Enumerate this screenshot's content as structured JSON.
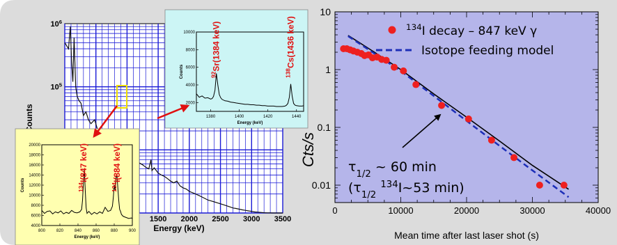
{
  "colors": {
    "panel_bg": "#dcdcdc",
    "right_plot_bg": "#b5b5ea",
    "left_grid": "#1a1ad6",
    "spectrum_line": "#111111",
    "cyan_inset_bg": "#ccf5f5",
    "yellow_inset_bg": "#ffffb0",
    "label_red": "#e01010",
    "decay_points": "#ee2020",
    "model_line": "#1d2fb8",
    "fit_line": "#000000"
  },
  "chart_data": [
    {
      "type": "line",
      "id": "gamma-spectrum",
      "xlabel": "Energy (keV)",
      "ylabel": "Counts",
      "log_y": true,
      "grid": true,
      "ylim": [
        1000,
        1000000
      ],
      "xlim": [
        0,
        3500
      ],
      "x_ticks": [
        1500,
        2000,
        2500,
        3000,
        3500
      ],
      "y_ticks": [
        {
          "value": 1000000,
          "base": "10",
          "exp": "6"
        },
        {
          "value": 100000,
          "base": "10",
          "exp": "5"
        },
        {
          "value": 10000,
          "base": "10",
          "exp": "4"
        }
      ],
      "series": [
        {
          "x": [
            0,
            60,
            90,
            110,
            130,
            150,
            175,
            200,
            230,
            260,
            300,
            340,
            380,
            420,
            480,
            520,
            560,
            600,
            640,
            680,
            720,
            760,
            800,
            847,
            884,
            950,
            1000,
            1050,
            1100,
            1150,
            1200,
            1250,
            1300,
            1350,
            1384,
            1400,
            1436,
            1500,
            1550,
            1600,
            1650,
            1700,
            1750,
            1800,
            1850,
            1900,
            1950,
            2000,
            2050,
            2100,
            2150,
            2200,
            2250,
            2300,
            2350,
            2400,
            2450,
            2500,
            2550,
            2600,
            2650,
            2700,
            2750,
            2800,
            2850,
            2900,
            2950,
            3000,
            3050,
            3100,
            3150,
            3200,
            3250,
            3300,
            3350,
            3400,
            3450,
            3500
          ],
          "values": [
            500000,
            400000,
            900000,
            250000,
            120000,
            600000,
            100000,
            70000,
            60000,
            55000,
            35000,
            40000,
            30000,
            26000,
            30000,
            22000,
            19000,
            18000,
            16000,
            14000,
            13000,
            12000,
            11000,
            20000,
            16000,
            9500,
            8500,
            8000,
            7500,
            6800,
            6200,
            5800,
            5300,
            5000,
            7000,
            4700,
            5200,
            4300,
            4000,
            3800,
            3500,
            3200,
            3000,
            3200,
            2700,
            2500,
            2400,
            2200,
            2100,
            2000,
            1900,
            1800,
            1700,
            1600,
            1550,
            1500,
            1450,
            1400,
            1350,
            1300,
            1250,
            1200,
            1180,
            1150,
            1120,
            1100,
            1080,
            1060,
            1040,
            1030,
            1020,
            1010,
            1005,
            1002,
            1001,
            1000,
            1000,
            1000
          ]
        }
      ]
    },
    {
      "type": "line",
      "id": "inset-sr-cs",
      "xlabel": "Energy (keV)",
      "ylabel": "Counts",
      "xlim": [
        1370,
        1445
      ],
      "ylim": [
        1000,
        10000
      ],
      "x_ticks": [
        1380,
        1400,
        1420,
        1440
      ],
      "y_ticks": [
        2000,
        4000,
        6000,
        8000,
        10000
      ],
      "annotations": [
        {
          "pre": "92",
          "text": "Sr(1384 keV)",
          "x": 1384
        },
        {
          "pre": "138",
          "text": "Cs(1436 keV)",
          "x": 1436
        }
      ],
      "series": [
        {
          "x": [
            1370,
            1372,
            1374,
            1376,
            1378,
            1380,
            1381,
            1382,
            1383,
            1384,
            1385,
            1386,
            1387,
            1388,
            1390,
            1392,
            1394,
            1396,
            1398,
            1400,
            1402,
            1404,
            1406,
            1408,
            1410,
            1412,
            1414,
            1416,
            1418,
            1420,
            1422,
            1424,
            1426,
            1428,
            1430,
            1432,
            1433,
            1434,
            1435,
            1436,
            1437,
            1438,
            1439,
            1440,
            1442,
            1444,
            1445
          ],
          "values": [
            3000,
            2600,
            2750,
            2500,
            2550,
            2400,
            2450,
            2700,
            3400,
            5300,
            4000,
            2900,
            2550,
            2350,
            2200,
            2150,
            2050,
            2000,
            1950,
            1900,
            1850,
            1800,
            1800,
            1750,
            1750,
            1700,
            1700,
            1650,
            1650,
            1600,
            1600,
            1600,
            1550,
            1550,
            1550,
            1600,
            1700,
            1900,
            2600,
            4100,
            2700,
            1900,
            1700,
            1650,
            1600,
            1600,
            1650
          ]
        }
      ]
    },
    {
      "type": "line",
      "id": "inset-i134",
      "xlabel": "Energy (keV)",
      "ylabel": "Counts",
      "xlim": [
        800,
        900
      ],
      "ylim": [
        4000,
        20000
      ],
      "x_ticks": [
        800,
        820,
        840,
        860,
        880,
        900
      ],
      "y_ticks": [
        4000,
        6000,
        8000,
        10000,
        12000,
        14000,
        16000,
        18000,
        20000
      ],
      "annotations": [
        {
          "pre": "134",
          "text": "I(847 keV)",
          "x": 847
        },
        {
          "pre": "134",
          "text": "I(884 keV)",
          "x": 884
        }
      ],
      "series": [
        {
          "x": [
            800,
            803,
            806,
            809,
            812,
            815,
            818,
            821,
            824,
            827,
            830,
            833,
            836,
            839,
            842,
            844,
            845,
            846,
            847,
            848,
            849,
            850,
            852,
            855,
            858,
            861,
            864,
            867,
            870,
            873,
            876,
            878,
            879,
            880,
            881,
            882,
            883,
            884,
            885,
            886,
            887,
            888,
            890,
            893,
            896,
            899,
            900
          ],
          "values": [
            7000,
            6400,
            6800,
            6900,
            6300,
            6700,
            6500,
            6900,
            6300,
            6600,
            6400,
            7000,
            6600,
            6500,
            6700,
            7200,
            9000,
            12500,
            15200,
            11000,
            7500,
            6400,
            6800,
            6200,
            6600,
            6300,
            6700,
            6400,
            7600,
            6800,
            7000,
            7800,
            9500,
            12000,
            11000,
            13500,
            14000,
            11500,
            9000,
            7200,
            6800,
            6200,
            5800,
            5600,
            5400,
            5500,
            5400
          ]
        }
      ]
    },
    {
      "type": "scatter",
      "id": "decay-curve",
      "xlabel": "Mean time after last laser shot (s)",
      "ylabel": "Cts/s",
      "log_y": true,
      "xlim": [
        0,
        40000
      ],
      "ylim": [
        0.005,
        10
      ],
      "x_ticks": [
        0,
        10000,
        20000,
        30000,
        40000
      ],
      "y_ticks": [
        {
          "value": 10,
          "label": "10"
        },
        {
          "value": 1,
          "label": "1"
        },
        {
          "value": 0.1,
          "label": "0.1"
        },
        {
          "value": 0.01,
          "label": "0.01"
        }
      ],
      "series": [
        {
          "name": "134I decay - 847 keV γ",
          "legend_pre": "134",
          "legend_text": "I decay – 847 keV γ",
          "x": [
            1300,
            1800,
            2300,
            2800,
            3400,
            4000,
            4500,
            5100,
            5700,
            6400,
            7100,
            7800,
            9000,
            10400,
            12300,
            16200,
            20300,
            23800,
            27200,
            31100,
            34800
          ],
          "values": [
            2.3,
            2.3,
            2.2,
            2.1,
            2.0,
            1.9,
            1.75,
            1.8,
            1.6,
            1.65,
            1.5,
            1.45,
            1.1,
            0.95,
            0.55,
            0.24,
            0.14,
            0.06,
            0.03,
            0.01,
            0.01
          ]
        },
        {
          "name": "Isotope feeding model",
          "style": "dashed",
          "x": [
            2000,
            6000,
            10000,
            15000,
            20000,
            25000,
            30000,
            35500
          ],
          "values": [
            3.8,
            1.9,
            0.95,
            0.35,
            0.13,
            0.048,
            0.018,
            0.0062
          ]
        },
        {
          "name": "fit",
          "style": "solid",
          "x": [
            2000,
            6000,
            10000,
            15000,
            20000,
            25000,
            30000,
            35500
          ],
          "values": [
            3.9,
            2.0,
            1.0,
            0.38,
            0.15,
            0.058,
            0.022,
            0.0085
          ]
        }
      ],
      "annotations": [
        {
          "line1_prefix": "τ",
          "line1_sub": "1/2",
          "line1_suffix": " ~ 60 min"
        },
        {
          "line2_open": "(τ",
          "line2_sub": "1/2",
          "line2_sup": "134",
          "line2_close": "I~53 min)"
        }
      ]
    }
  ]
}
